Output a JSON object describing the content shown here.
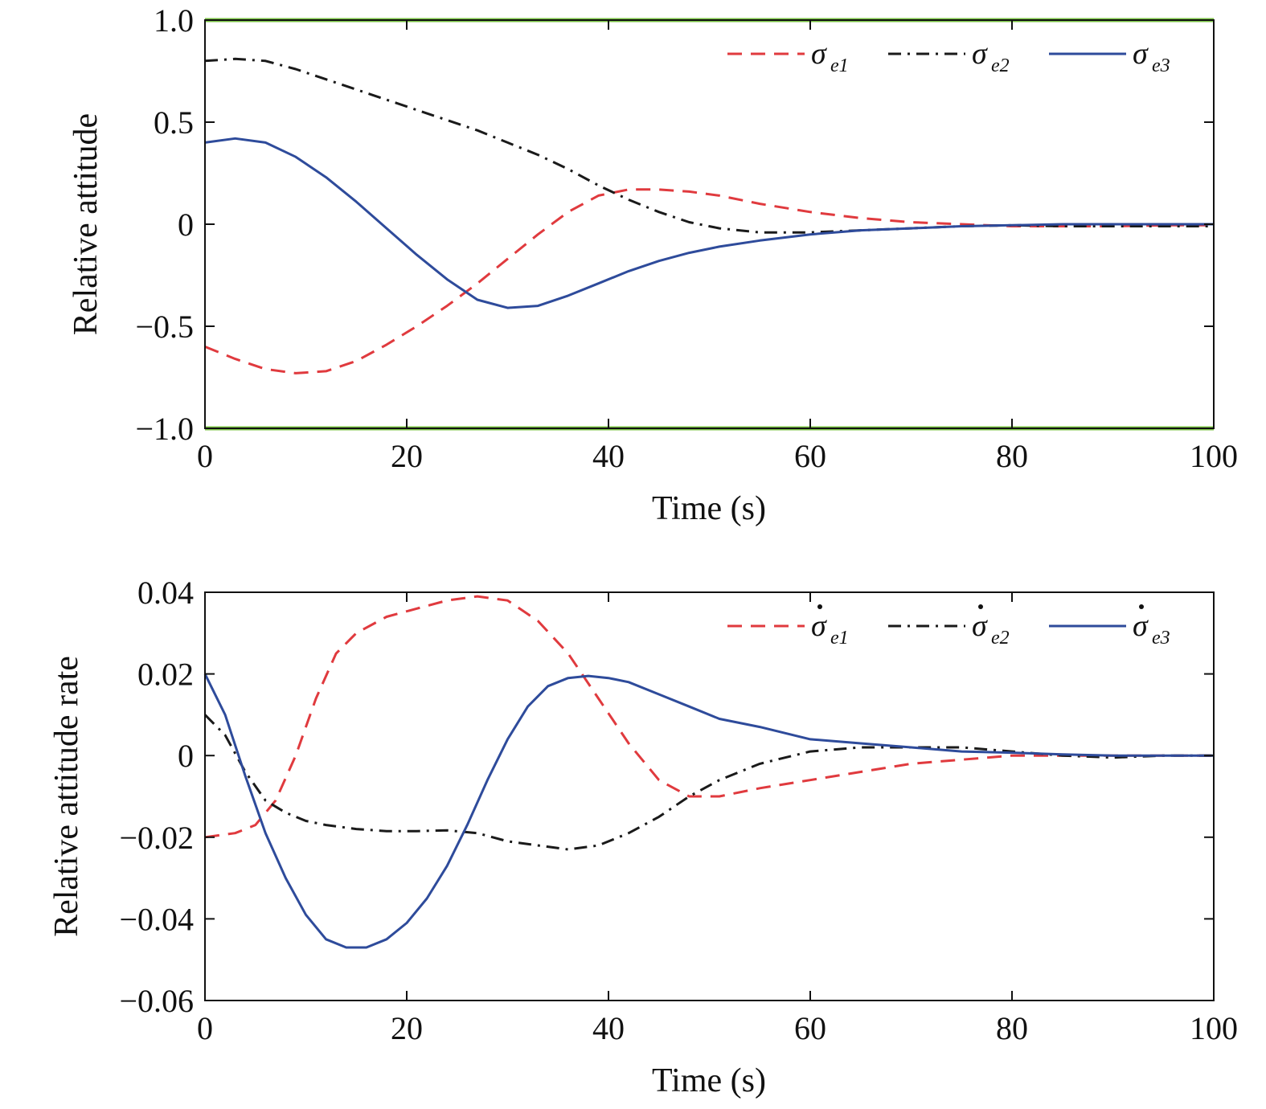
{
  "chart_data": [
    {
      "type": "line",
      "xlabel": "Time (s)",
      "ylabel": "Relative attitude",
      "xlim": [
        0,
        100
      ],
      "ylim": [
        -1.0,
        1.0
      ],
      "xticks": [
        "0",
        "20",
        "40",
        "60",
        "80",
        "100"
      ],
      "xtick_values": [
        0,
        20,
        40,
        60,
        80,
        100
      ],
      "yticks": [
        "−1.0",
        "−0.5",
        "0",
        "0.5",
        "1.0"
      ],
      "ytick_values": [
        -1.0,
        -0.5,
        0,
        0.5,
        1.0
      ],
      "bound_lines": {
        "values": [
          -1.0,
          1.0
        ],
        "color": "#7ac143"
      },
      "legend_position": "top-right",
      "grid": false,
      "series": [
        {
          "name": "σ",
          "sub": "e1",
          "dot": false,
          "color": "#e03a3e",
          "style": "dashed",
          "x": [
            0,
            3,
            6,
            9,
            12,
            15,
            18,
            21,
            24,
            27,
            30,
            33,
            36,
            39,
            42,
            45,
            48,
            51,
            55,
            60,
            65,
            70,
            75,
            80,
            85,
            90,
            95,
            100
          ],
          "y": [
            -0.6,
            -0.66,
            -0.71,
            -0.73,
            -0.72,
            -0.67,
            -0.59,
            -0.5,
            -0.4,
            -0.29,
            -0.17,
            -0.05,
            0.06,
            0.14,
            0.17,
            0.17,
            0.16,
            0.14,
            0.1,
            0.06,
            0.03,
            0.01,
            0.0,
            -0.01,
            -0.01,
            -0.01,
            -0.005,
            -0.005
          ]
        },
        {
          "name": "σ",
          "sub": "e2",
          "dot": false,
          "color": "#1a1a1a",
          "style": "dashdot",
          "x": [
            0,
            3,
            6,
            9,
            12,
            15,
            18,
            21,
            24,
            27,
            30,
            33,
            36,
            39,
            42,
            45,
            48,
            51,
            55,
            60,
            65,
            70,
            75,
            80,
            85,
            90,
            95,
            100
          ],
          "y": [
            0.8,
            0.81,
            0.8,
            0.76,
            0.71,
            0.66,
            0.61,
            0.56,
            0.51,
            0.46,
            0.4,
            0.34,
            0.27,
            0.19,
            0.12,
            0.06,
            0.01,
            -0.02,
            -0.04,
            -0.04,
            -0.03,
            -0.02,
            -0.01,
            -0.005,
            -0.01,
            -0.01,
            -0.01,
            -0.01
          ]
        },
        {
          "name": "σ",
          "sub": "e3",
          "dot": false,
          "color": "#2e4b9b",
          "style": "solid",
          "x": [
            0,
            3,
            6,
            9,
            12,
            15,
            18,
            21,
            24,
            27,
            30,
            33,
            36,
            39,
            42,
            45,
            48,
            51,
            55,
            60,
            65,
            70,
            75,
            80,
            85,
            90,
            95,
            100
          ],
          "y": [
            0.4,
            0.42,
            0.4,
            0.33,
            0.23,
            0.11,
            -0.02,
            -0.15,
            -0.27,
            -0.37,
            -0.41,
            -0.4,
            -0.35,
            -0.29,
            -0.23,
            -0.18,
            -0.14,
            -0.11,
            -0.08,
            -0.05,
            -0.03,
            -0.02,
            -0.01,
            -0.005,
            0.0,
            0.0,
            0.0,
            0.0
          ]
        }
      ]
    },
    {
      "type": "line",
      "xlabel": "Time (s)",
      "ylabel": "Relative attitude rate",
      "xlim": [
        0,
        100
      ],
      "ylim": [
        -0.06,
        0.04
      ],
      "xticks": [
        "0",
        "20",
        "40",
        "60",
        "80",
        "100"
      ],
      "xtick_values": [
        0,
        20,
        40,
        60,
        80,
        100
      ],
      "yticks": [
        "−0.06",
        "−0.04",
        "−0.02",
        "0",
        "0.02",
        "0.04"
      ],
      "ytick_values": [
        -0.06,
        -0.04,
        -0.02,
        0,
        0.02,
        0.04
      ],
      "legend_position": "top-right",
      "grid": false,
      "series": [
        {
          "name": "σ",
          "sub": "e1",
          "dot": true,
          "color": "#e03a3e",
          "style": "dashed",
          "x": [
            0,
            3,
            5,
            7,
            9,
            11,
            13,
            15,
            18,
            21,
            24,
            27,
            30,
            33,
            36,
            39,
            42,
            45,
            48,
            51,
            55,
            60,
            65,
            70,
            75,
            80,
            85,
            90,
            95,
            100
          ],
          "y": [
            -0.02,
            -0.019,
            -0.017,
            -0.011,
            0.0,
            0.014,
            0.025,
            0.03,
            0.034,
            0.036,
            0.038,
            0.039,
            0.038,
            0.033,
            0.025,
            0.014,
            0.003,
            -0.006,
            -0.01,
            -0.01,
            -0.008,
            -0.006,
            -0.004,
            -0.002,
            -0.001,
            0.0,
            0.0,
            0.0,
            0.0,
            0.0
          ]
        },
        {
          "name": "σ",
          "sub": "e2",
          "dot": true,
          "color": "#1a1a1a",
          "style": "dashdot",
          "x": [
            0,
            2,
            4,
            6,
            8,
            10,
            12,
            15,
            18,
            21,
            24,
            27,
            30,
            33,
            36,
            39,
            42,
            45,
            48,
            51,
            55,
            60,
            65,
            70,
            75,
            80,
            85,
            90,
            95,
            100
          ],
          "y": [
            0.01,
            0.005,
            -0.004,
            -0.011,
            -0.014,
            -0.016,
            -0.017,
            -0.018,
            -0.0185,
            -0.0185,
            -0.0183,
            -0.019,
            -0.021,
            -0.022,
            -0.023,
            -0.022,
            -0.019,
            -0.015,
            -0.01,
            -0.006,
            -0.002,
            0.001,
            0.002,
            0.002,
            0.002,
            0.001,
            0.0,
            -0.0005,
            0.0,
            0.0
          ]
        },
        {
          "name": "σ",
          "sub": "e3",
          "dot": true,
          "color": "#2e4b9b",
          "style": "solid",
          "x": [
            0,
            2,
            4,
            6,
            8,
            10,
            12,
            14,
            15,
            16,
            18,
            20,
            22,
            24,
            26,
            28,
            30,
            32,
            34,
            36,
            38,
            40,
            42,
            45,
            48,
            51,
            55,
            60,
            65,
            70,
            75,
            80,
            85,
            90,
            95,
            100
          ],
          "y": [
            0.02,
            0.01,
            -0.005,
            -0.019,
            -0.03,
            -0.039,
            -0.045,
            -0.047,
            -0.047,
            -0.047,
            -0.045,
            -0.041,
            -0.035,
            -0.027,
            -0.017,
            -0.006,
            0.004,
            0.012,
            0.017,
            0.019,
            0.0195,
            0.019,
            0.018,
            0.015,
            0.012,
            0.009,
            0.007,
            0.004,
            0.003,
            0.002,
            0.001,
            0.0007,
            0.0003,
            0.0,
            0.0,
            0.0
          ]
        }
      ]
    }
  ]
}
